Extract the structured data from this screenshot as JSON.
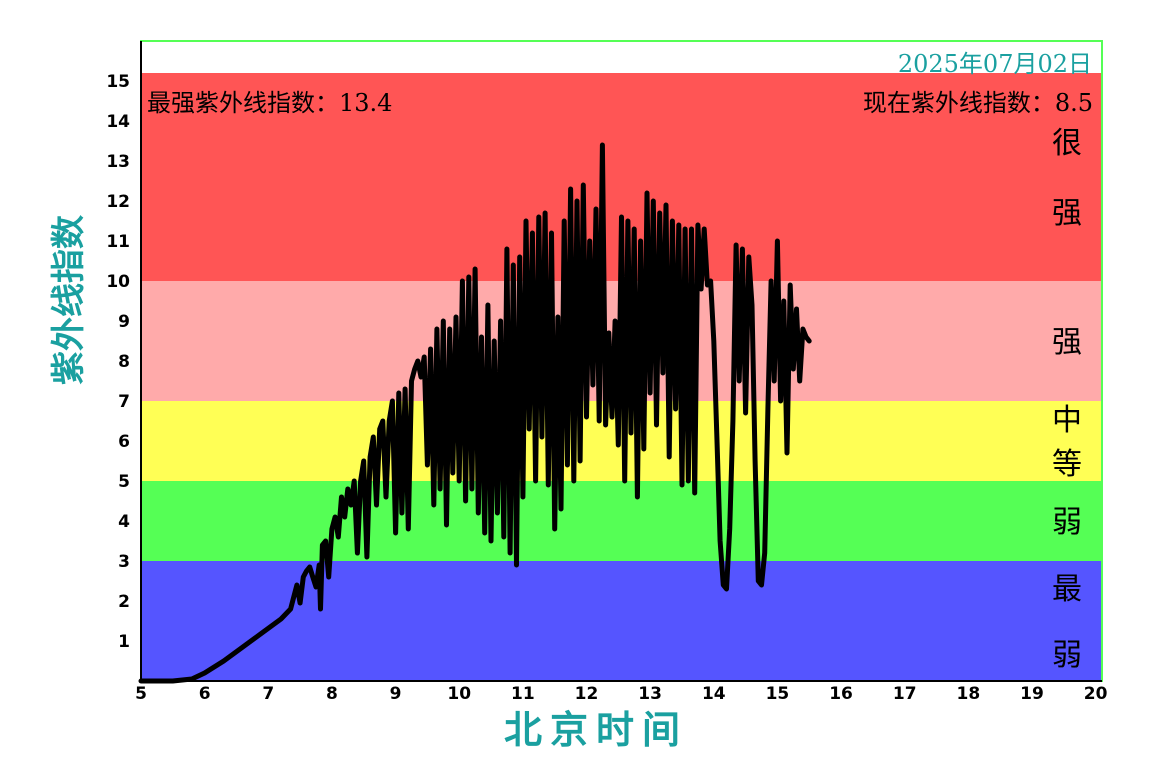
{
  "chart_data": {
    "type": "line",
    "date": "2025年07月02日",
    "max_text": "最强紫外线指数：13.4",
    "current_text": "现在紫外线指数：8.5",
    "ylabel": "紫外线指数",
    "xlabel": "北京时间",
    "xlim": [
      5,
      20.1
    ],
    "ylim": [
      0,
      16
    ],
    "x_ticks": [
      5,
      6,
      7,
      8,
      9,
      10,
      11,
      12,
      13,
      14,
      15,
      16,
      17,
      18,
      19,
      20
    ],
    "y_ticks": [
      1,
      2,
      3,
      4,
      5,
      6,
      7,
      8,
      9,
      10,
      11,
      12,
      13,
      14,
      15
    ],
    "bands": [
      {
        "name": "最弱",
        "from": 0,
        "to": 3,
        "color": "#5555ff",
        "label_chars": [
          "最",
          "弱"
        ]
      },
      {
        "name": "弱",
        "from": 3,
        "to": 5,
        "color": "#55ff55",
        "label_chars": [
          "弱"
        ]
      },
      {
        "name": "中等",
        "from": 5,
        "to": 7,
        "color": "#ffff55",
        "label_chars": [
          "中",
          "等"
        ]
      },
      {
        "name": "强",
        "from": 7,
        "to": 10,
        "color": "#ffaaaa",
        "label_chars": [
          "强"
        ]
      },
      {
        "name": "很强",
        "from": 10,
        "to": 15.2,
        "color": "#ff5555",
        "label_chars": [
          "很",
          "强"
        ]
      }
    ],
    "series": [
      {
        "color": "#000000",
        "points": [
          [
            5.0,
            0.0
          ],
          [
            5.5,
            0.0
          ],
          [
            5.8,
            0.05
          ],
          [
            6.0,
            0.2
          ],
          [
            6.3,
            0.5
          ],
          [
            6.6,
            0.85
          ],
          [
            6.9,
            1.2
          ],
          [
            7.2,
            1.55
          ],
          [
            7.35,
            1.8
          ],
          [
            7.45,
            2.4
          ],
          [
            7.5,
            1.95
          ],
          [
            7.55,
            2.6
          ],
          [
            7.6,
            2.75
          ],
          [
            7.65,
            2.85
          ],
          [
            7.7,
            2.6
          ],
          [
            7.75,
            2.35
          ],
          [
            7.8,
            2.9
          ],
          [
            7.82,
            1.8
          ],
          [
            7.85,
            3.4
          ],
          [
            7.9,
            3.5
          ],
          [
            7.95,
            2.6
          ],
          [
            8.0,
            3.8
          ],
          [
            8.05,
            4.1
          ],
          [
            8.1,
            3.6
          ],
          [
            8.15,
            4.6
          ],
          [
            8.2,
            4.1
          ],
          [
            8.25,
            4.8
          ],
          [
            8.3,
            4.4
          ],
          [
            8.35,
            5.0
          ],
          [
            8.4,
            3.2
          ],
          [
            8.45,
            5.0
          ],
          [
            8.5,
            5.5
          ],
          [
            8.55,
            3.1
          ],
          [
            8.6,
            5.6
          ],
          [
            8.65,
            6.1
          ],
          [
            8.7,
            4.4
          ],
          [
            8.75,
            6.3
          ],
          [
            8.8,
            6.5
          ],
          [
            8.85,
            4.6
          ],
          [
            8.9,
            6.5
          ],
          [
            8.95,
            7.0
          ],
          [
            9.0,
            3.7
          ],
          [
            9.05,
            7.2
          ],
          [
            9.1,
            4.2
          ],
          [
            9.15,
            7.3
          ],
          [
            9.2,
            3.8
          ],
          [
            9.25,
            7.5
          ],
          [
            9.3,
            7.8
          ],
          [
            9.35,
            8.0
          ],
          [
            9.4,
            7.6
          ],
          [
            9.45,
            8.1
          ],
          [
            9.5,
            5.4
          ],
          [
            9.55,
            8.3
          ],
          [
            9.6,
            4.4
          ],
          [
            9.65,
            8.8
          ],
          [
            9.7,
            4.8
          ],
          [
            9.75,
            9.0
          ],
          [
            9.8,
            3.9
          ],
          [
            9.85,
            8.8
          ],
          [
            9.9,
            5.2
          ],
          [
            9.95,
            9.1
          ],
          [
            10.0,
            5.0
          ],
          [
            10.05,
            10.0
          ],
          [
            10.1,
            4.5
          ],
          [
            10.15,
            10.1
          ],
          [
            10.2,
            4.8
          ],
          [
            10.25,
            10.3
          ],
          [
            10.3,
            4.2
          ],
          [
            10.35,
            8.6
          ],
          [
            10.4,
            3.7
          ],
          [
            10.45,
            9.4
          ],
          [
            10.5,
            3.5
          ],
          [
            10.55,
            8.5
          ],
          [
            10.6,
            4.2
          ],
          [
            10.65,
            9.0
          ],
          [
            10.7,
            3.6
          ],
          [
            10.75,
            10.8
          ],
          [
            10.8,
            3.2
          ],
          [
            10.85,
            10.4
          ],
          [
            10.9,
            2.9
          ],
          [
            10.95,
            10.6
          ],
          [
            11.0,
            4.6
          ],
          [
            11.05,
            11.5
          ],
          [
            11.1,
            6.3
          ],
          [
            11.15,
            11.2
          ],
          [
            11.2,
            5.0
          ],
          [
            11.25,
            11.6
          ],
          [
            11.3,
            6.1
          ],
          [
            11.35,
            11.7
          ],
          [
            11.4,
            4.9
          ],
          [
            11.45,
            11.2
          ],
          [
            11.5,
            3.8
          ],
          [
            11.55,
            9.1
          ],
          [
            11.6,
            4.3
          ],
          [
            11.65,
            11.5
          ],
          [
            11.7,
            5.4
          ],
          [
            11.75,
            12.3
          ],
          [
            11.8,
            5.0
          ],
          [
            11.85,
            12.0
          ],
          [
            11.9,
            5.5
          ],
          [
            11.95,
            12.4
          ],
          [
            12.0,
            6.6
          ],
          [
            12.05,
            11.0
          ],
          [
            12.1,
            7.4
          ],
          [
            12.15,
            11.8
          ],
          [
            12.2,
            6.5
          ],
          [
            12.25,
            13.4
          ],
          [
            12.3,
            6.4
          ],
          [
            12.35,
            8.7
          ],
          [
            12.4,
            6.6
          ],
          [
            12.45,
            9.0
          ],
          [
            12.5,
            5.9
          ],
          [
            12.55,
            11.6
          ],
          [
            12.6,
            5.0
          ],
          [
            12.65,
            11.5
          ],
          [
            12.7,
            6.2
          ],
          [
            12.75,
            11.3
          ],
          [
            12.8,
            4.6
          ],
          [
            12.85,
            11.0
          ],
          [
            12.9,
            5.8
          ],
          [
            12.95,
            12.2
          ],
          [
            13.0,
            7.2
          ],
          [
            13.05,
            12.0
          ],
          [
            13.1,
            6.4
          ],
          [
            13.15,
            11.7
          ],
          [
            13.2,
            7.7
          ],
          [
            13.25,
            11.9
          ],
          [
            13.3,
            5.6
          ],
          [
            13.35,
            11.5
          ],
          [
            13.4,
            6.8
          ],
          [
            13.45,
            11.4
          ],
          [
            13.5,
            4.9
          ],
          [
            13.55,
            11.3
          ],
          [
            13.6,
            5.0
          ],
          [
            13.65,
            11.3
          ],
          [
            13.7,
            4.7
          ],
          [
            13.75,
            11.4
          ],
          [
            13.8,
            9.8
          ],
          [
            13.85,
            11.3
          ],
          [
            13.9,
            9.9
          ],
          [
            13.95,
            10.0
          ],
          [
            14.0,
            8.5
          ],
          [
            14.05,
            6.0
          ],
          [
            14.1,
            3.5
          ],
          [
            14.15,
            2.4
          ],
          [
            14.2,
            2.3
          ],
          [
            14.25,
            3.8
          ],
          [
            14.3,
            6.5
          ],
          [
            14.35,
            10.9
          ],
          [
            14.4,
            7.5
          ],
          [
            14.45,
            10.8
          ],
          [
            14.5,
            6.7
          ],
          [
            14.55,
            10.6
          ],
          [
            14.6,
            9.4
          ],
          [
            14.65,
            5.5
          ],
          [
            14.7,
            2.5
          ],
          [
            14.75,
            2.4
          ],
          [
            14.8,
            3.2
          ],
          [
            14.85,
            6.8
          ],
          [
            14.9,
            10.0
          ],
          [
            14.95,
            7.5
          ],
          [
            15.0,
            11.0
          ],
          [
            15.05,
            7.0
          ],
          [
            15.1,
            9.5
          ],
          [
            15.15,
            5.7
          ],
          [
            15.2,
            9.9
          ],
          [
            15.25,
            7.8
          ],
          [
            15.3,
            9.3
          ],
          [
            15.35,
            7.5
          ],
          [
            15.4,
            8.8
          ],
          [
            15.45,
            8.6
          ],
          [
            15.5,
            8.5
          ]
        ]
      }
    ]
  }
}
